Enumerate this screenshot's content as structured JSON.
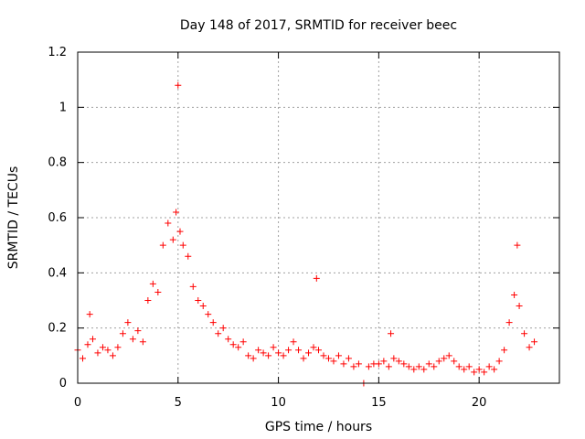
{
  "chart_data": {
    "type": "scatter",
    "title": "Day 148 of 2017, SRMTID for receiver beec",
    "xlabel": "GPS time / hours",
    "ylabel": "SRMTID / TECUs",
    "xlim": [
      0,
      24
    ],
    "ylim": [
      0,
      1.2
    ],
    "x_ticks": [
      0,
      5,
      10,
      15,
      20
    ],
    "x_tick_labels": [
      "0",
      "5",
      "10",
      "15",
      "20"
    ],
    "y_ticks": [
      0,
      0.2,
      0.4,
      0.6,
      0.8,
      1,
      1.2
    ],
    "y_tick_labels": [
      "0",
      "0.2",
      "0.4",
      "0.6",
      "0.8",
      "1",
      "1.2"
    ],
    "grid": true,
    "marker": "+",
    "color": "#ff0000",
    "series": [
      {
        "name": "SRMTID",
        "x": [
          0.0,
          0.25,
          0.5,
          0.6,
          0.75,
          1.0,
          1.25,
          1.5,
          1.75,
          2.0,
          2.25,
          2.5,
          2.75,
          3.0,
          3.25,
          3.5,
          3.75,
          4.0,
          4.25,
          4.5,
          4.75,
          4.9,
          5.0,
          5.1,
          5.25,
          5.5,
          5.75,
          6.0,
          6.25,
          6.5,
          6.75,
          7.0,
          7.25,
          7.5,
          7.75,
          8.0,
          8.25,
          8.5,
          8.75,
          9.0,
          9.25,
          9.5,
          9.75,
          10.0,
          10.25,
          10.5,
          10.75,
          11.0,
          11.25,
          11.5,
          11.75,
          11.9,
          12.0,
          12.25,
          12.5,
          12.75,
          13.0,
          13.25,
          13.5,
          13.75,
          14.0,
          14.25,
          14.5,
          14.75,
          15.0,
          15.25,
          15.5,
          15.6,
          15.75,
          16.0,
          16.25,
          16.5,
          16.75,
          17.0,
          17.25,
          17.5,
          17.75,
          18.0,
          18.25,
          18.5,
          18.75,
          19.0,
          19.25,
          19.5,
          19.75,
          20.0,
          20.25,
          20.5,
          20.75,
          21.0,
          21.25,
          21.5,
          21.75,
          21.9,
          22.0,
          22.25,
          22.5,
          22.75
        ],
        "y": [
          0.12,
          0.09,
          0.14,
          0.25,
          0.16,
          0.11,
          0.13,
          0.12,
          0.1,
          0.13,
          0.18,
          0.22,
          0.16,
          0.19,
          0.15,
          0.3,
          0.36,
          0.33,
          0.5,
          0.58,
          0.52,
          0.62,
          1.08,
          0.55,
          0.5,
          0.46,
          0.35,
          0.3,
          0.28,
          0.25,
          0.22,
          0.18,
          0.2,
          0.16,
          0.14,
          0.13,
          0.15,
          0.1,
          0.09,
          0.12,
          0.11,
          0.1,
          0.13,
          0.11,
          0.1,
          0.12,
          0.15,
          0.12,
          0.09,
          0.11,
          0.13,
          0.38,
          0.12,
          0.1,
          0.09,
          0.08,
          0.1,
          0.07,
          0.09,
          0.06,
          0.07,
          0.0,
          0.06,
          0.07,
          0.07,
          0.08,
          0.06,
          0.18,
          0.09,
          0.08,
          0.07,
          0.06,
          0.05,
          0.06,
          0.05,
          0.07,
          0.06,
          0.08,
          0.09,
          0.1,
          0.08,
          0.06,
          0.05,
          0.06,
          0.04,
          0.05,
          0.04,
          0.06,
          0.05,
          0.08,
          0.12,
          0.22,
          0.32,
          0.5,
          0.28,
          0.18,
          0.13,
          0.15
        ]
      }
    ]
  }
}
